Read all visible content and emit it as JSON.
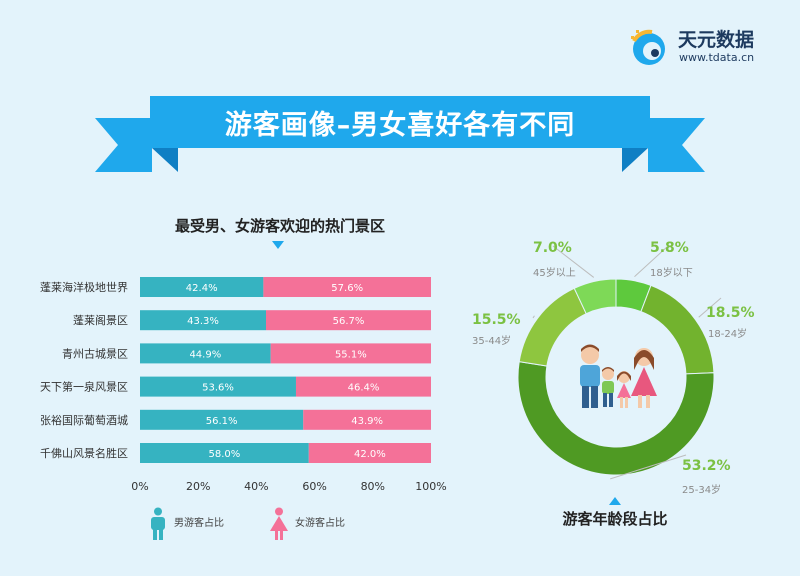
{
  "brand": {
    "name": "天元数据",
    "url": "www.tdata.cn"
  },
  "banner": {
    "title": "游客画像–男女喜好各有不同"
  },
  "colors": {
    "banner": "#1fa8ec",
    "banner_dark": "#0f7fc4",
    "male": "#36b3c1",
    "female": "#f47198",
    "donut": [
      "#5ec93d",
      "#72b32e",
      "#4f9a23",
      "#8ec63f",
      "#7ed957"
    ]
  },
  "chart_data": [
    {
      "type": "bar",
      "orientation": "horizontal",
      "stacked": true,
      "title": "最受男、女游客欢迎的热门景区",
      "categories": [
        "蓬莱海洋极地世界",
        "蓬莱阁景区",
        "青州古城景区",
        "天下第一泉风景区",
        "张裕国际葡萄酒城",
        "千佛山风景名胜区"
      ],
      "series": [
        {
          "name": "男游客占比",
          "values": [
            42.4,
            43.3,
            44.9,
            53.6,
            56.1,
            58.0
          ],
          "labels": [
            "42.4%",
            "43.3%",
            "44.9%",
            "53.6%",
            "56.1%",
            "58.0%"
          ]
        },
        {
          "name": "女游客占比",
          "values": [
            57.6,
            56.7,
            55.1,
            46.4,
            43.9,
            42.0
          ],
          "labels": [
            "57.6%",
            "56.7%",
            "55.1%",
            "46.4%",
            "43.9%",
            "42.0%"
          ]
        }
      ],
      "xlim": [
        0,
        100
      ],
      "xticks": [
        "0%",
        "20%",
        "40%",
        "60%",
        "80%",
        "100%"
      ],
      "legend": "bottom"
    },
    {
      "type": "pie",
      "donut": true,
      "title": "游客年龄段占比",
      "slices": [
        {
          "label": "18岁以下",
          "value": 5.8,
          "pct": "5.8%"
        },
        {
          "label": "18-24岁",
          "value": 18.5,
          "pct": "18.5%"
        },
        {
          "label": "25-34岁",
          "value": 53.2,
          "pct": "53.2%"
        },
        {
          "label": "35-44岁",
          "value": 15.5,
          "pct": "15.5%"
        },
        {
          "label": "45岁以上",
          "value": 7.0,
          "pct": "7.0%"
        }
      ]
    }
  ]
}
